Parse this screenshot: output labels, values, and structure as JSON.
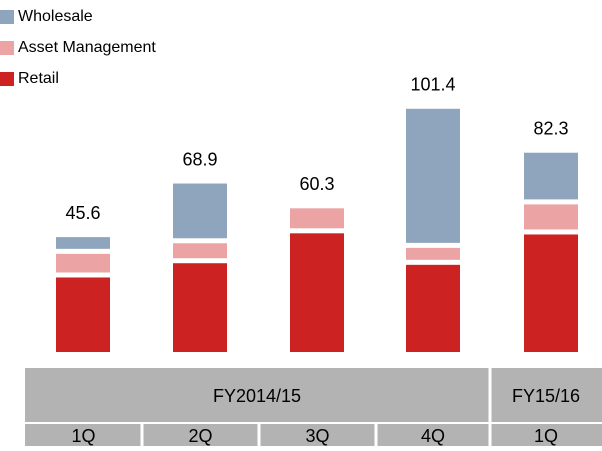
{
  "chart_data": {
    "type": "stacked_bar",
    "categories": [
      "1Q",
      "2Q",
      "3Q",
      "4Q",
      "1Q"
    ],
    "groups": [
      "FY2014/15",
      "FY15/16"
    ],
    "series": [
      {
        "name": "Retail",
        "color": "#cc2222",
        "values": [
          32.4,
          38.6,
          51.6,
          37.9,
          51.1
        ]
      },
      {
        "name": "Asset Management",
        "color": "#eba3a3",
        "values": [
          8.1,
          6.5,
          8.7,
          5.2,
          10.9
        ]
      },
      {
        "name": "Wholesale",
        "color": "#8fa5bd",
        "values": [
          5.1,
          23.8,
          0,
          58.3,
          20.3
        ]
      }
    ],
    "totals": [
      45.6,
      68.9,
      60.3,
      101.4,
      82.3
    ]
  }
}
